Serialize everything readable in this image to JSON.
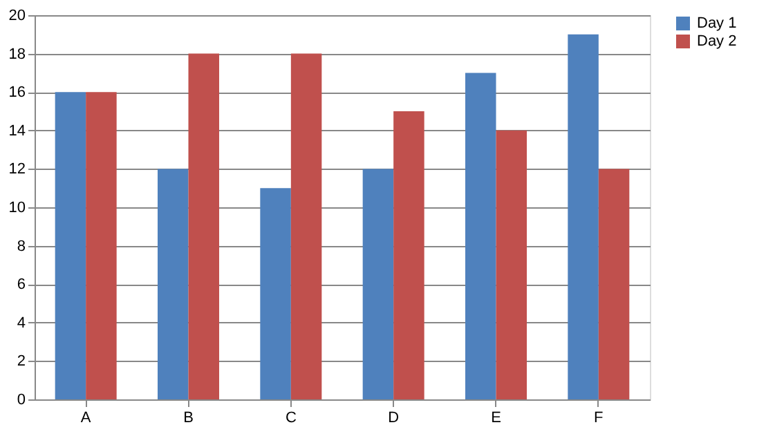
{
  "chart_data": {
    "type": "bar",
    "categories": [
      "A",
      "B",
      "C",
      "D",
      "E",
      "F"
    ],
    "series": [
      {
        "name": "Day 1",
        "color": "#4f81bd",
        "values": [
          16,
          12,
          11,
          12,
          17,
          19
        ]
      },
      {
        "name": "Day 2",
        "color": "#c0504d",
        "values": [
          16,
          18,
          18,
          15,
          14,
          12
        ]
      }
    ],
    "ylim": [
      0,
      20
    ],
    "yticks": [
      0,
      2,
      4,
      6,
      8,
      10,
      12,
      14,
      16,
      18,
      20
    ],
    "grid": "y",
    "legend": "right"
  }
}
